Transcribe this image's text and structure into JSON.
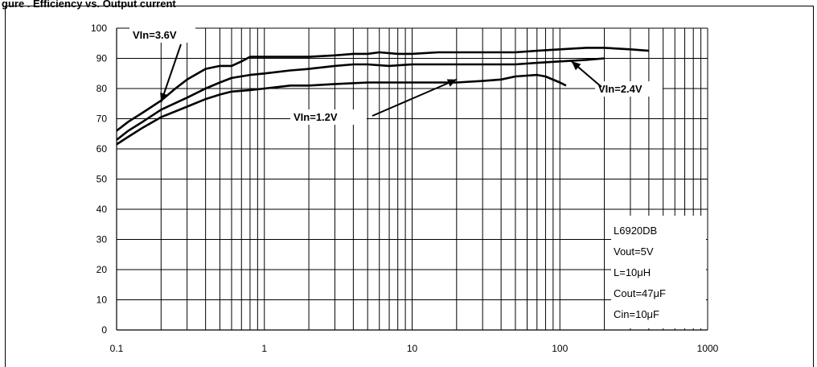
{
  "caption": "gure  . Efficiency vs. Output current",
  "chart_data": {
    "type": "line",
    "title": "",
    "xlabel": "",
    "ylabel": "",
    "xscale": "log",
    "xlim": [
      0.1,
      1000
    ],
    "ylim": [
      0,
      100
    ],
    "xticks": [
      "0.1",
      "1",
      "10",
      "100",
      "1000"
    ],
    "yticks": [
      "0",
      "10",
      "20",
      "30",
      "40",
      "50",
      "60",
      "70",
      "80",
      "90",
      "100"
    ],
    "grid": true,
    "series": [
      {
        "name": "VIn=3.6V",
        "x": [
          0.1,
          0.12,
          0.15,
          0.2,
          0.25,
          0.3,
          0.4,
          0.5,
          0.6,
          0.7,
          0.8,
          1,
          1.5,
          2,
          3,
          4,
          5,
          6,
          8,
          10,
          15,
          20,
          30,
          50,
          70,
          100,
          150,
          200,
          300,
          400
        ],
        "values": [
          66,
          69,
          72,
          76,
          80,
          83,
          86.5,
          87.5,
          87.5,
          89,
          90.5,
          90.5,
          90.5,
          90.5,
          91,
          91.5,
          91.5,
          92,
          91.5,
          91.5,
          92,
          92,
          92,
          92,
          92.5,
          93,
          93.5,
          93.5,
          93,
          92.5
        ]
      },
      {
        "name": "VIn=2.4V",
        "x": [
          0.1,
          0.12,
          0.15,
          0.2,
          0.3,
          0.4,
          0.5,
          0.6,
          0.8,
          1,
          1.5,
          2,
          3,
          4,
          5,
          7,
          10,
          15,
          20,
          30,
          50,
          70,
          100,
          150,
          200
        ],
        "values": [
          63,
          66,
          69,
          73,
          77,
          80,
          82,
          83.5,
          84.5,
          85,
          86,
          86.5,
          87.5,
          88,
          88,
          87.5,
          88,
          88,
          88,
          88,
          88,
          88.5,
          89,
          89.5,
          90
        ]
      },
      {
        "name": "VIn=1.2V",
        "x": [
          0.1,
          0.12,
          0.15,
          0.2,
          0.3,
          0.4,
          0.5,
          0.6,
          0.8,
          1,
          1.5,
          2,
          3,
          5,
          7,
          10,
          15,
          20,
          30,
          40,
          50,
          70,
          80,
          100,
          110
        ],
        "values": [
          61.5,
          64,
          67,
          70.5,
          74,
          76.5,
          78,
          79,
          79.5,
          80,
          81,
          81,
          81.5,
          82,
          82,
          82,
          82,
          82,
          82.5,
          83,
          84,
          84.5,
          84,
          82,
          81
        ]
      }
    ],
    "annotations": [
      {
        "text": "VIn=3.6V",
        "target_x": 0.2,
        "target_y": 75.5
      },
      {
        "text": "VIn=2.4V",
        "target_x": 120,
        "target_y": 89
      },
      {
        "text": "VIn=1.2V",
        "target_x": 20,
        "target_y": 83
      }
    ],
    "legend_box": {
      "position": "bottom-right",
      "lines": [
        "L6920DB",
        "Vout=5V",
        "L=10μH",
        "Cout=47μF",
        "Cin=10μF"
      ]
    }
  }
}
